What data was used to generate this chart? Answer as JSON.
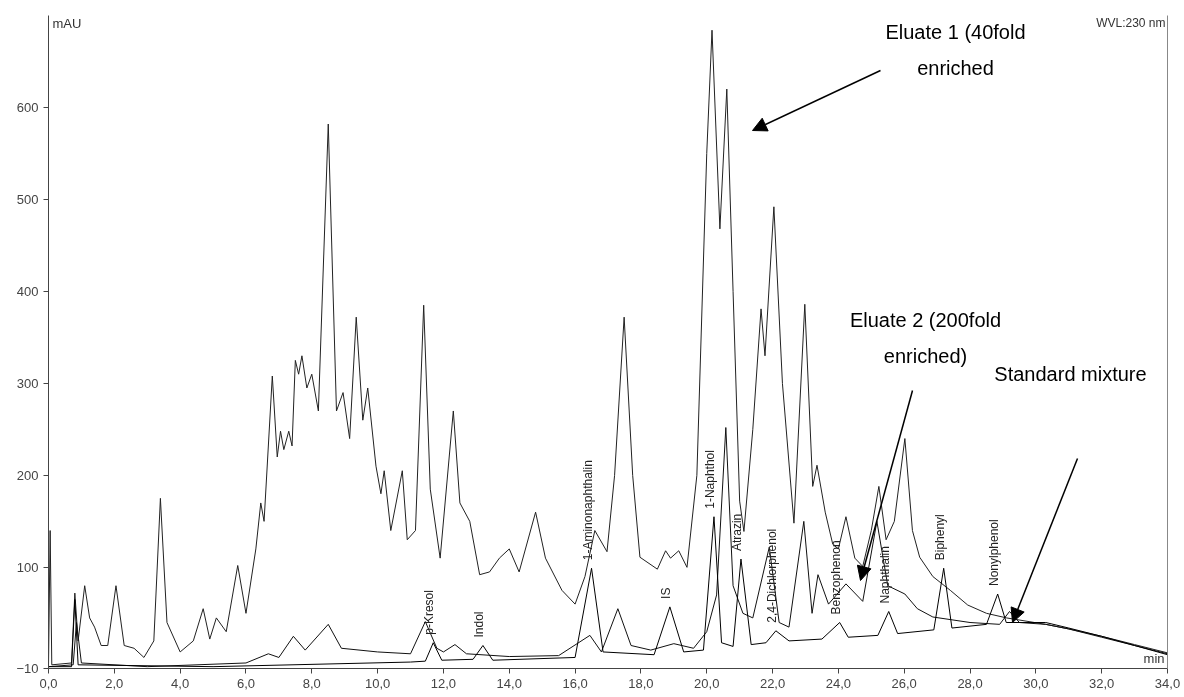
{
  "chart_data": {
    "type": "line",
    "xlabel": "min",
    "ylabel": "mAU",
    "xlim": [
      0,
      34
    ],
    "ylim": [
      -10,
      700
    ],
    "xticks": [
      {
        "value": 0,
        "label": "0,0"
      },
      {
        "value": 2,
        "label": "2,0"
      },
      {
        "value": 4,
        "label": "4,0"
      },
      {
        "value": 6,
        "label": "6,0"
      },
      {
        "value": 8,
        "label": "8,0"
      },
      {
        "value": 10,
        "label": "10,0"
      },
      {
        "value": 12,
        "label": "12,0"
      },
      {
        "value": 14,
        "label": "14,0"
      },
      {
        "value": 16,
        "label": "16,0"
      },
      {
        "value": 18,
        "label": "18,0"
      },
      {
        "value": 20,
        "label": "20,0"
      },
      {
        "value": 22,
        "label": "22,0"
      },
      {
        "value": 24,
        "label": "24,0"
      },
      {
        "value": 26,
        "label": "26,0"
      },
      {
        "value": 28,
        "label": "28,0"
      },
      {
        "value": 30,
        "label": "30,0"
      },
      {
        "value": 32,
        "label": "32,0"
      },
      {
        "value": 34,
        "label": "34,0"
      }
    ],
    "yticks": [
      -10,
      100,
      200,
      300,
      400,
      500,
      600
    ],
    "grid": false,
    "marker": "none",
    "line_style": "solid",
    "series": [
      {
        "color": "#222222",
        "x": [
          0,
          0.05,
          0.1,
          0.7,
          0.8,
          0.9,
          1.1,
          1.25,
          1.4,
          1.6,
          1.8,
          2.05,
          2.3,
          2.6,
          2.9,
          3.2,
          3.4,
          3.6,
          4.0,
          4.4,
          4.7,
          4.9,
          5.1,
          5.4,
          5.75,
          6.0,
          6.3,
          6.45,
          6.55,
          6.8,
          6.95,
          7.05,
          7.15,
          7.3,
          7.4,
          7.5,
          7.6,
          7.7,
          7.85,
          8.0,
          8.2,
          8.5,
          8.75,
          8.95,
          9.15,
          9.35,
          9.55,
          9.7,
          9.95,
          10.1,
          10.2,
          10.4,
          10.75,
          10.9,
          11.15,
          11.4,
          11.6,
          11.9,
          12.3,
          12.5,
          12.8,
          13.1,
          13.4,
          13.7,
          14.0,
          14.3,
          14.8,
          15.1,
          15.6,
          16.0,
          16.3,
          16.6,
          16.97,
          17.2,
          17.49,
          17.75,
          17.97,
          18.5,
          18.75,
          18.9,
          19.15,
          19.4,
          19.7,
          20.0,
          20.16,
          20.4,
          20.61,
          20.8,
          21.0,
          21.13,
          21.4,
          21.65,
          21.77,
          22.04,
          22.3,
          22.65,
          22.98,
          23.22,
          23.35,
          23.6,
          23.83,
          24.0,
          24.23,
          24.5,
          24.74,
          25.0,
          25.23,
          25.45,
          25.7,
          26.02,
          26.25,
          26.47,
          26.87,
          27.4,
          27.93,
          28.5,
          29.11,
          30.3,
          31.0,
          32.0,
          33.0,
          34.0
        ],
        "values": [
          -8,
          140,
          -6,
          -4,
          72,
          20,
          80,
          45,
          35,
          15,
          15,
          80,
          15,
          12,
          2,
          20,
          175,
          40,
          8,
          20,
          55,
          22,
          45,
          30,
          102,
          50,
          120,
          170,
          150,
          308,
          220,
          248,
          228,
          248,
          232,
          325,
          310,
          330,
          295,
          310,
          270,
          582,
          270,
          290,
          240,
          372,
          260,
          295,
          210,
          180,
          205,
          140,
          205,
          130,
          140,
          385,
          185,
          110,
          270,
          170,
          150,
          92,
          95,
          110,
          120,
          95,
          160,
          110,
          75,
          60,
          90,
          140,
          117,
          200,
          372,
          200,
          111,
          98,
          118,
          110,
          118,
          100,
          200,
          550,
          684,
          468,
          620,
          400,
          172,
          139,
          250,
          381,
          330,
          492,
          300,
          148,
          386,
          188,
          211,
          160,
          125,
          120,
          155,
          110,
          101,
          140,
          188,
          130,
          150,
          240,
          140,
          111,
          90,
          75,
          59,
          50,
          45,
          38,
          33,
          25,
          16,
          7
        ]
      },
      {
        "color": "#111111",
        "x": [
          0,
          0.75,
          0.85,
          1.0,
          3.0,
          6.0,
          6.68,
          7.0,
          7.44,
          7.8,
          8.5,
          8.9,
          10.0,
          11.0,
          11.45,
          11.8,
          12.0,
          12.35,
          12.7,
          14.0,
          15.5,
          16.45,
          16.8,
          17.3,
          17.7,
          18.3,
          19.0,
          19.6,
          20.0,
          20.3,
          20.58,
          20.8,
          21.1,
          21.4,
          21.9,
          22.2,
          22.5,
          22.95,
          23.2,
          23.38,
          23.7,
          24.23,
          24.74,
          25.17,
          25.5,
          26.02,
          26.4,
          26.87,
          28.0,
          28.9,
          29.2,
          29.5,
          30.3,
          31.0,
          32.0,
          33.0,
          34.0
        ],
        "values": [
          -8,
          -6,
          40,
          -4,
          -8,
          -4,
          6,
          2,
          25,
          10,
          38,
          12,
          8,
          6,
          41,
          12,
          8,
          16,
          6,
          3,
          4,
          26,
          8,
          55,
          15,
          10,
          17,
          12,
          30,
          70,
          252,
          80,
          50,
          45,
          122,
          40,
          35,
          150,
          50,
          92,
          60,
          82,
          63,
          150,
          80,
          71,
          55,
          46,
          40,
          38,
          52,
          40,
          38,
          33,
          24,
          15,
          6
        ]
      },
      {
        "color": "#000000",
        "x": [
          0,
          0.7,
          0.8,
          0.9,
          5.0,
          11.0,
          11.45,
          11.69,
          11.95,
          12.9,
          13.2,
          13.5,
          16.0,
          16.5,
          16.85,
          18.4,
          18.88,
          19.3,
          19.9,
          20.22,
          20.45,
          20.8,
          21.04,
          21.35,
          21.8,
          22.1,
          22.5,
          23.5,
          24.04,
          24.3,
          25.2,
          25.53,
          25.8,
          26.9,
          27.2,
          27.45,
          28.5,
          28.84,
          29.1,
          30.3,
          31.0,
          32.0,
          33.0,
          34.0
        ],
        "values": [
          -8,
          -8,
          65,
          -6,
          -8,
          -3,
          -2,
          18,
          -1,
          0,
          15,
          -1,
          2,
          99,
          8,
          5,
          57,
          8,
          10,
          155,
          18,
          14,
          109,
          16,
          18,
          31,
          20,
          22,
          40,
          24,
          26,
          52,
          28,
          32,
          99,
          34,
          38,
          71,
          40,
          40,
          34,
          25,
          15,
          5
        ]
      }
    ],
    "annotations": [
      "WVL:230 nm",
      "Eluate 1 (40fold\nenriched",
      "Eluate 2 (200fold\nenriched)",
      "Standard mixture",
      {
        "text": "p-Kresol",
        "x": 11.69,
        "y": 18
      },
      {
        "text": "Indol",
        "x": 13.2,
        "y": 15
      },
      {
        "text": "1-Aminonaphthalin",
        "x": 16.5,
        "y": 99
      },
      {
        "text": "IS",
        "x": 18.88,
        "y": 57
      },
      {
        "text": "1-Naphthol",
        "x": 20.22,
        "y": 155
      },
      {
        "text": "Atrazin",
        "x": 21.04,
        "y": 109
      },
      {
        "text": "2,4-Dichlorphenol",
        "x": 22.1,
        "y": 31
      },
      {
        "text": "Benzophenon",
        "x": 24.04,
        "y": 40
      },
      {
        "text": "Naphthalin",
        "x": 25.53,
        "y": 52
      },
      {
        "text": "Biphenyl",
        "x": 27.2,
        "y": 99
      },
      {
        "text": "Nonylphenol",
        "x": 28.84,
        "y": 71
      }
    ]
  }
}
